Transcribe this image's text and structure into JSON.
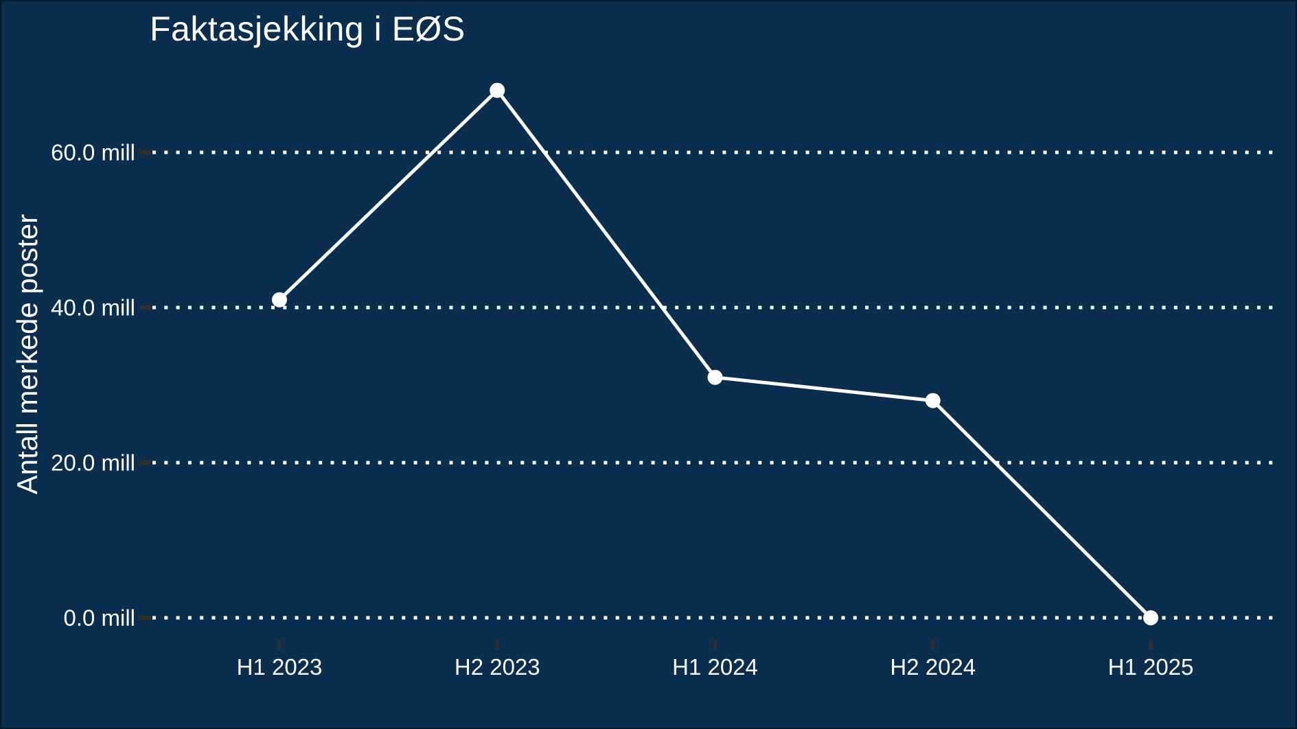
{
  "chart_data": {
    "type": "line",
    "title": "Faktasjekking i EØS",
    "ylabel": "Antall merkede poster",
    "xlabel": "",
    "categories": [
      "H1 2023",
      "H2 2023",
      "H1 2024",
      "H2 2024",
      "H1 2025"
    ],
    "series": [
      {
        "name": "Antall merkede poster",
        "values": [
          41,
          68,
          31,
          28,
          0
        ]
      }
    ],
    "unit": "mill",
    "yticks": [
      {
        "value": 0,
        "label": "0.0 mill"
      },
      {
        "value": 20,
        "label": "20.0 mill"
      },
      {
        "value": 40,
        "label": "40.0 mill"
      },
      {
        "value": 60,
        "label": "60.0 mill"
      }
    ],
    "ylim": [
      0,
      70
    ],
    "grid": "dotted-horizontal",
    "legend": "none",
    "colors": {
      "background": "#0b2d4e",
      "line": "#ffffff",
      "marker": "#ffffff",
      "text": "#ffffff",
      "axis_tick": "#332e26"
    }
  }
}
